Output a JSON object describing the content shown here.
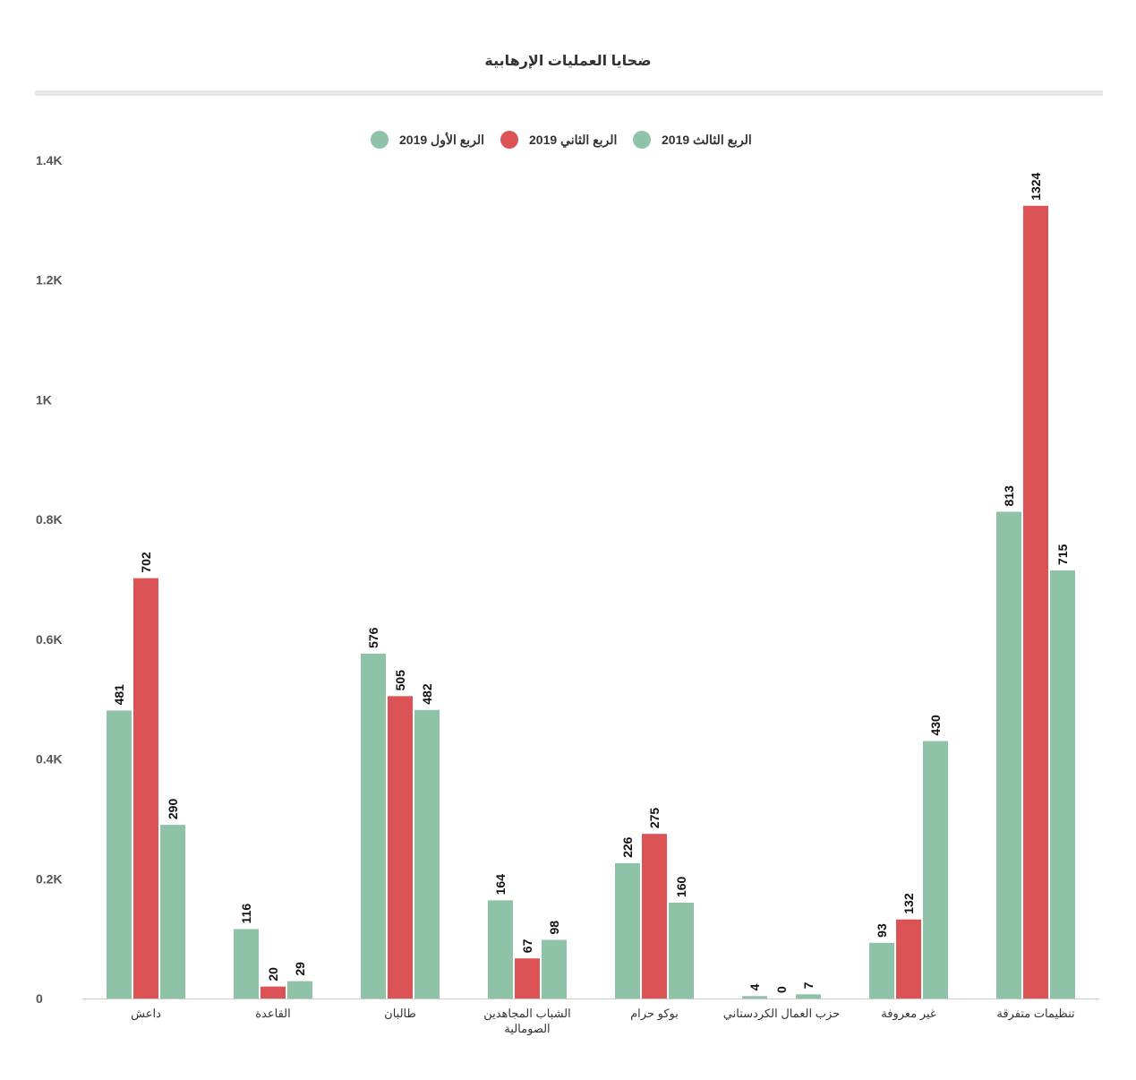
{
  "chart_data": {
    "type": "bar",
    "title": "ضحايا العمليات الإرهابية",
    "categories": [
      "داعش",
      "القاعدة",
      "طالبان",
      "الشباب المجاهدين الصومالية",
      "بوكو حرام",
      "حزب العمال الكردستاني",
      "غير معروفة",
      "تنظيمات متفرقة"
    ],
    "category_lines": [
      [
        "داعش"
      ],
      [
        "القاعدة"
      ],
      [
        "طالبان"
      ],
      [
        "الشباب المجاهدين",
        "الصومالية"
      ],
      [
        "بوكو حرام"
      ],
      [
        "حزب العمال الكردستاني"
      ],
      [
        "غير معروفة"
      ],
      [
        "تنظيمات متفرقة"
      ]
    ],
    "series": [
      {
        "name": "الربع الأول 2019",
        "color": "#8ec3a7",
        "values": [
          481,
          116,
          576,
          164,
          226,
          4,
          93,
          813
        ]
      },
      {
        "name": "الربع الثاني 2019",
        "color": "#dc5356",
        "values": [
          702,
          20,
          505,
          67,
          275,
          0,
          132,
          1324
        ]
      },
      {
        "name": "الربع الثالث 2019",
        "color": "#8ec3a7",
        "values": [
          290,
          29,
          482,
          98,
          160,
          7,
          430,
          715
        ]
      }
    ],
    "ylim": [
      0,
      1400
    ],
    "yticks": [
      0,
      200,
      400,
      600,
      800,
      1000,
      1200,
      1400
    ],
    "ytick_labels": [
      "0",
      "0.2K",
      "0.4K",
      "0.6K",
      "0.8K",
      "1K",
      "1.2K",
      "1.4K"
    ],
    "legend_position": "top-center",
    "grid": false
  }
}
